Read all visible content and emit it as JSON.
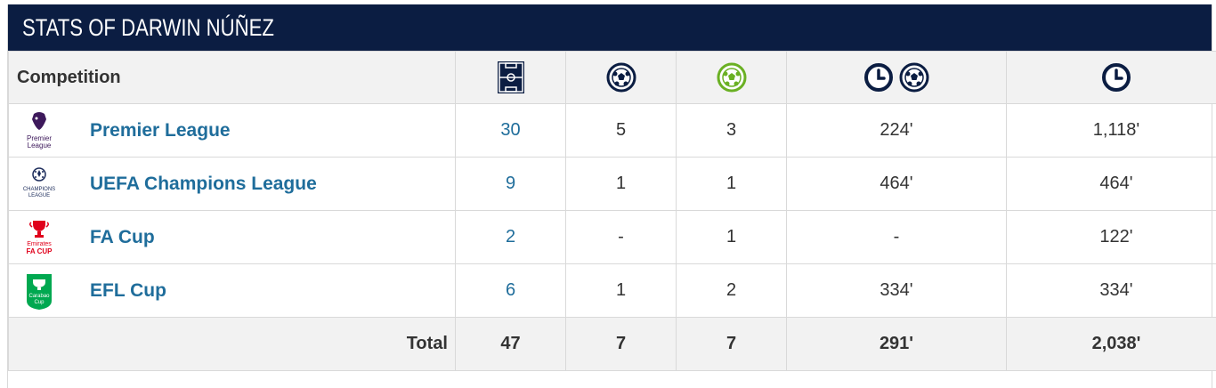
{
  "title": "STATS OF DARWIN NÚÑEZ",
  "header": {
    "competition": "Competition",
    "icons": [
      "pitch-appearances-icon",
      "goal-ball-icon",
      "assist-ball-icon",
      "minutes-per-goal-icon",
      "minutes-played-icon"
    ]
  },
  "rows": [
    {
      "name": "Premier League",
      "logo": "premier-league-logo",
      "logo_text": "Premier League",
      "apps": "30",
      "goals": "5",
      "assists": "3",
      "mins_per_goal": "224'",
      "minutes": "1,118'"
    },
    {
      "name": "UEFA Champions League",
      "logo": "champions-league-logo",
      "logo_text": "CHAMPIONS LEAGUE",
      "apps": "9",
      "goals": "1",
      "assists": "1",
      "mins_per_goal": "464'",
      "minutes": "464'"
    },
    {
      "name": "FA Cup",
      "logo": "fa-cup-logo",
      "logo_text": "Emirates FA CUP",
      "apps": "2",
      "goals": "-",
      "assists": "1",
      "mins_per_goal": "-",
      "minutes": "122'"
    },
    {
      "name": "EFL Cup",
      "logo": "efl-cup-logo",
      "logo_text": "Carabao Cup",
      "apps": "6",
      "goals": "1",
      "assists": "2",
      "mins_per_goal": "334'",
      "minutes": "334'"
    }
  ],
  "total": {
    "label": "Total",
    "apps": "47",
    "goals": "7",
    "assists": "7",
    "mins_per_goal": "291'",
    "minutes": "2,038'"
  },
  "colors": {
    "title_bg": "#0b1d42",
    "link": "#1f6d9b",
    "assist_green": "#6ab023",
    "icon_navy": "#0b1d42"
  }
}
